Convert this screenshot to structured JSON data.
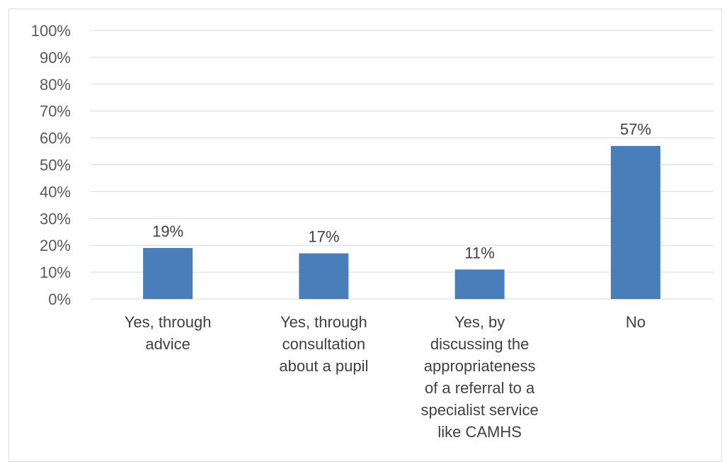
{
  "chart_data": {
    "type": "bar",
    "categories": [
      [
        "Yes, through",
        "advice"
      ],
      [
        "Yes, through",
        "consultation",
        "about a pupil"
      ],
      [
        "Yes, by",
        "discussing the",
        "appropriateness",
        "of a referral to a",
        "specialist service",
        "like CAMHS"
      ],
      [
        "No"
      ]
    ],
    "values": [
      19,
      17,
      11,
      57
    ],
    "data_labels": [
      "19%",
      "17%",
      "11%",
      "57%"
    ],
    "y_ticks": [
      "0%",
      "10%",
      "20%",
      "30%",
      "40%",
      "50%",
      "60%",
      "70%",
      "80%",
      "90%",
      "100%"
    ],
    "ylim": [
      0,
      100
    ],
    "grid": true,
    "bar_color": "#4a7ebb"
  }
}
